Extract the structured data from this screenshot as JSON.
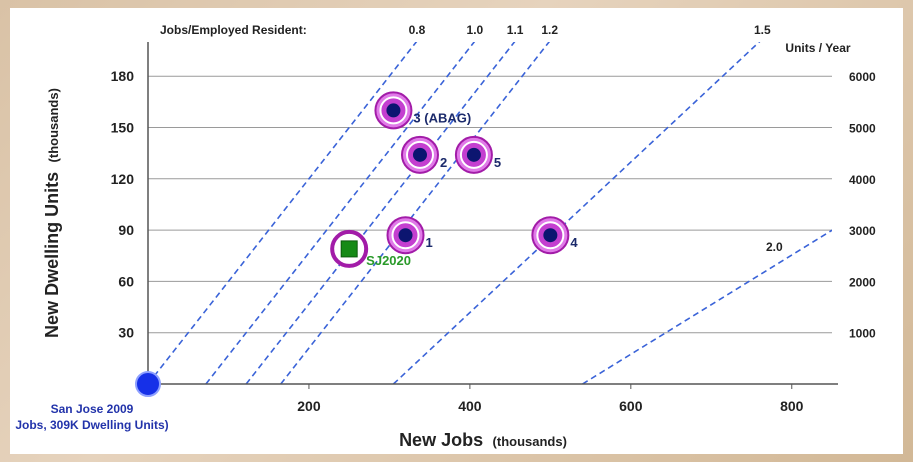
{
  "chart_data": {
    "type": "scatter",
    "xlabel": "New Jobs",
    "xlabel_unit": "(thousands)",
    "ylabel": "New Dwelling Units",
    "ylabel_unit": "(thousands)",
    "y2label": "Units / Year",
    "ratio_title": "Jobs/Employed Resident:",
    "xlim": [
      0,
      850
    ],
    "ylim": [
      0,
      200
    ],
    "x_ticks": [
      200,
      400,
      600,
      800
    ],
    "y_ticks": [
      30,
      60,
      90,
      120,
      150,
      180
    ],
    "y2_ticks": [
      {
        "value": 30,
        "label": "1000"
      },
      {
        "value": 60,
        "label": "2000"
      },
      {
        "value": 90,
        "label": "3000"
      },
      {
        "value": 120,
        "label": "4000"
      },
      {
        "value": 150,
        "label": "5000"
      },
      {
        "value": 180,
        "label": "6000"
      }
    ],
    "ratio_lines": [
      {
        "label": "0.8",
        "x_at_zero": 0,
        "slope": 0.6
      },
      {
        "label": "1.0",
        "x_at_zero": 72,
        "slope": 0.6
      },
      {
        "label": "1.1",
        "x_at_zero": 122,
        "slope": 0.6
      },
      {
        "label": "1.2",
        "x_at_zero": 165,
        "slope": 0.6
      },
      {
        "label": "1.5",
        "x_at_zero": 305,
        "slope": 0.44
      },
      {
        "label": "2.0",
        "x_at_zero": 540,
        "slope": 0.29
      }
    ],
    "points": [
      {
        "label": "3 (ABAG)",
        "x": 305,
        "y": 160,
        "kind": "scenario"
      },
      {
        "label": "2",
        "x": 338,
        "y": 134,
        "kind": "scenario"
      },
      {
        "label": "5",
        "x": 405,
        "y": 134,
        "kind": "scenario"
      },
      {
        "label": "1",
        "x": 320,
        "y": 87,
        "kind": "scenario"
      },
      {
        "label": "4",
        "x": 500,
        "y": 87,
        "kind": "scenario"
      },
      {
        "label": "SJ2020",
        "x": 250,
        "y": 79,
        "kind": "sj2020"
      }
    ],
    "origin_point": {
      "x": 0,
      "y": 0
    },
    "origin_label_line1": "San Jose 2009",
    "origin_label_line2": "Jobs, 309K Dwelling Units)"
  }
}
